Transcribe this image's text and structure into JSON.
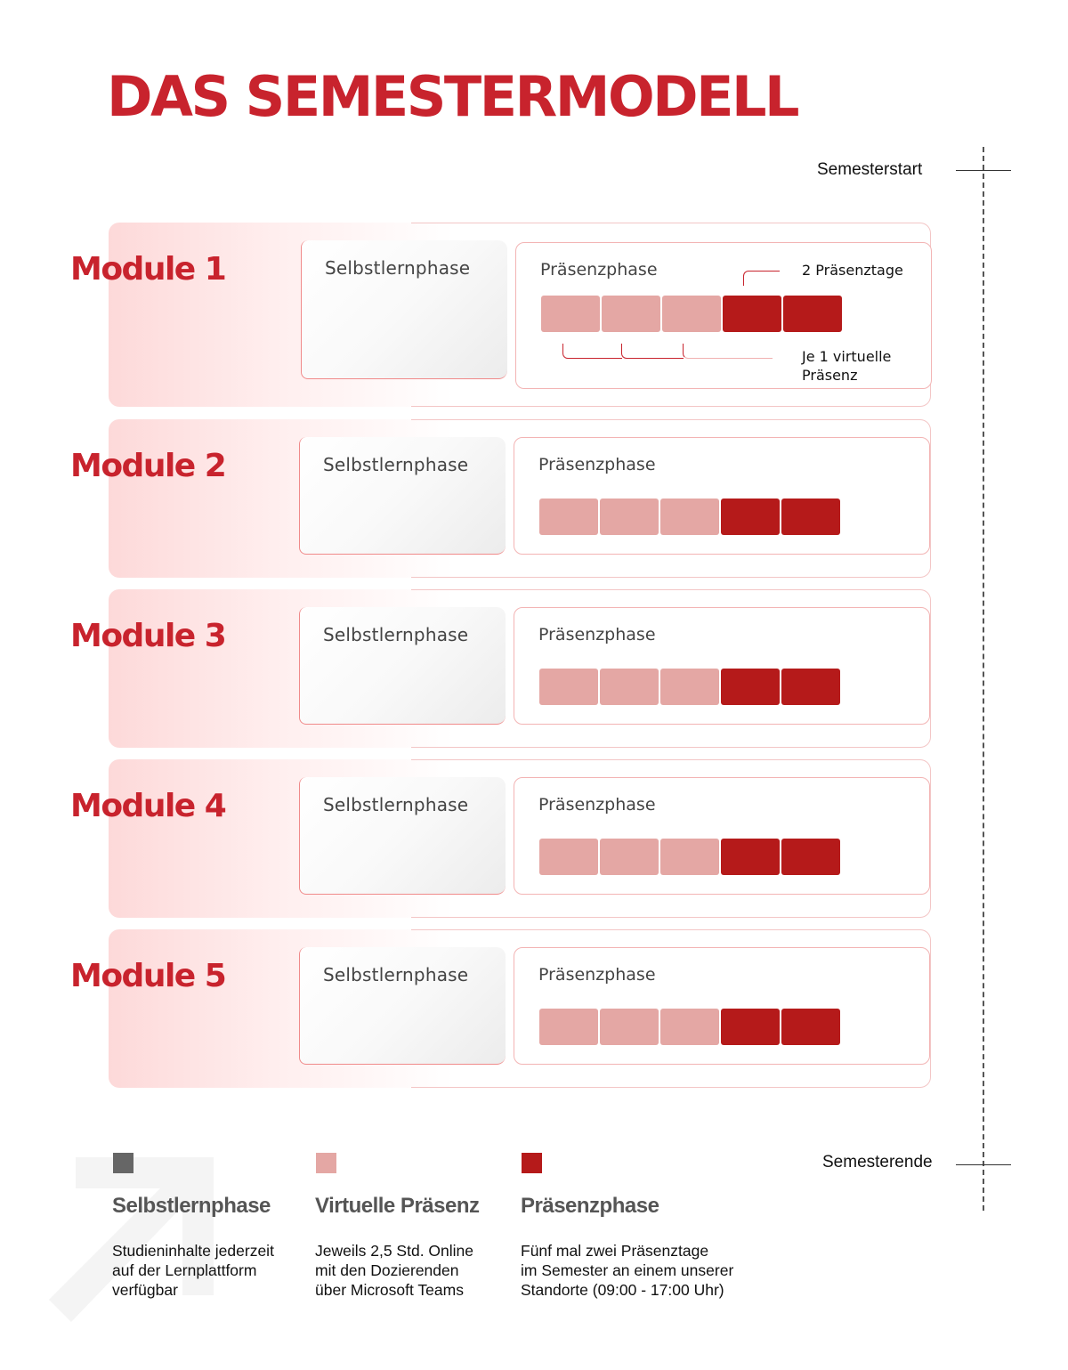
{
  "title": "DAS SEMESTERMODELL",
  "timeline": {
    "start_label": "Semesterstart",
    "end_label": "Semesterende"
  },
  "modules": [
    {
      "label": "Module 1",
      "self_label": "Selbstlernphase",
      "praes_label": "Präsenzphase"
    },
    {
      "label": "Module 2",
      "self_label": "Selbstlernphase",
      "praes_label": "Präsenzphase"
    },
    {
      "label": "Module 3",
      "self_label": "Selbstlernphase",
      "praes_label": "Präsenzphase"
    },
    {
      "label": "Module 4",
      "self_label": "Selbstlernphase",
      "praes_label": "Präsenzphase"
    },
    {
      "label": "Module 5",
      "self_label": "Selbstlernphase",
      "praes_label": "Präsenzphase"
    }
  ],
  "block_pattern": [
    "virtual",
    "virtual",
    "virtual",
    "praesenz",
    "praesenz"
  ],
  "annotations": {
    "praesenztage": "2 Präsenztage",
    "virtuelle_line1": "Je 1 virtuelle",
    "virtuelle_line2": "Präsenz"
  },
  "legend": [
    {
      "color": "#666666",
      "title": "Selbstlernphase",
      "lines": [
        "Studieninhalte jederzeit",
        "auf der Lernplattform",
        "verfügbar"
      ]
    },
    {
      "color": "#e4a7a4",
      "title": "Virtuelle Präsenz",
      "lines": [
        "Jeweils 2,5 Std.  Online",
        "mit den Dozierenden",
        "über Microsoft Teams"
      ]
    },
    {
      "color": "#b51a1a",
      "title": "Präsenzphase",
      "lines": [
        "Fünf mal zwei Präsenztage",
        "im Semester  an einem unserer",
        "Standorte (09:00 - 17:00 Uhr)"
      ]
    }
  ],
  "colors": {
    "accent": "#c8232d",
    "virtual": "#e4a7a4",
    "praesenz": "#b51a1a",
    "self": "#666666"
  }
}
